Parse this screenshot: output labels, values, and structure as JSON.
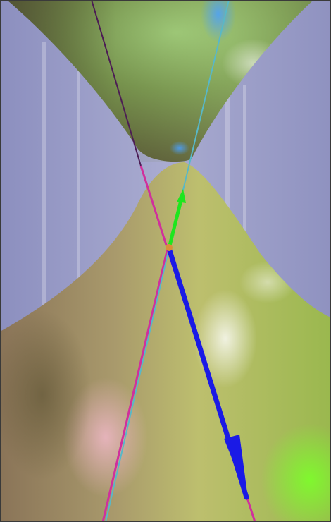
{
  "image": {
    "kind": "3D rendered hyperboloid (hourglass surface) with ruling lines and vectors",
    "colors": {
      "background_wall": "#9a9dc4",
      "surface_top_dark": "#6a6c40",
      "surface_top_green": "#8cba60",
      "surface_bottom_olive": "#b6b96a",
      "surface_bottom_pink": "#c89a9a",
      "line_magenta": "#d0309c",
      "line_cyan": "#58b8c8",
      "line_dark_purple": "#4c1c54",
      "vector_blue": "#1a1ae6",
      "vector_green": "#1ee61e",
      "intersection_point": "#d89038",
      "frame_border": "#3a3a3a"
    },
    "elements": [
      "hyperboloid-surface",
      "magenta-ruling-line",
      "cyan-ruling-line",
      "blue-vector-arrow",
      "green-vector-arrow",
      "intersection-point"
    ]
  }
}
